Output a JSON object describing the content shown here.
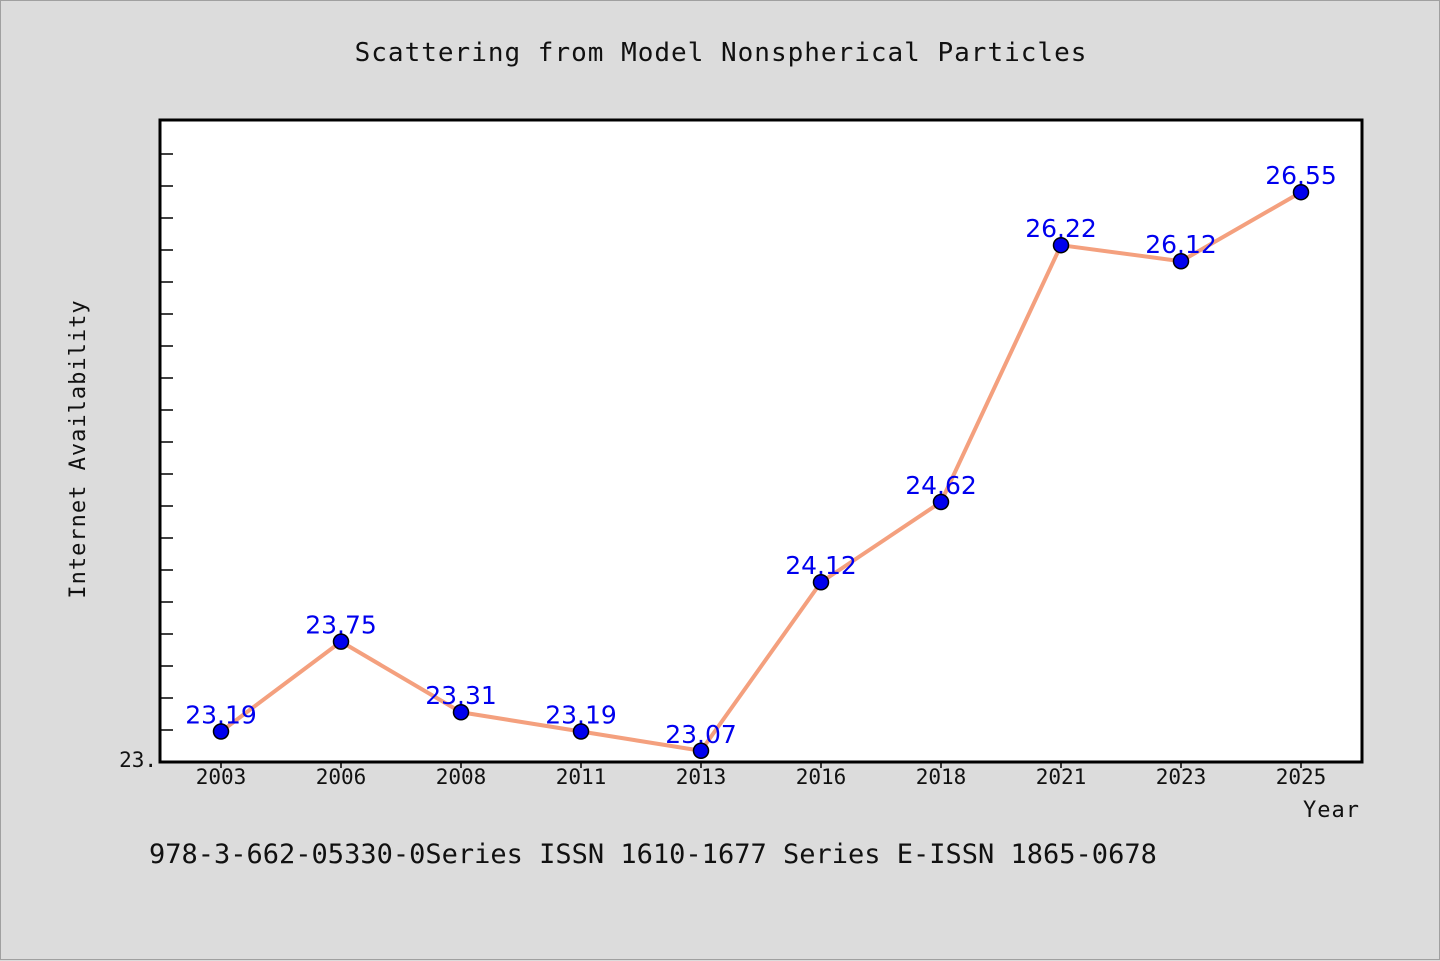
{
  "chart_data": {
    "type": "line",
    "title": "Scattering from Model Nonspherical Particles",
    "xlabel": "Year",
    "ylabel": "Internet Availability",
    "categories": [
      "2003",
      "2006",
      "2008",
      "2011",
      "2013",
      "2016",
      "2018",
      "2021",
      "2023",
      "2025"
    ],
    "values": [
      23.19,
      23.75,
      23.31,
      23.19,
      23.07,
      24.12,
      24.62,
      26.22,
      26.12,
      26.55
    ],
    "data_labels": [
      "23.19",
      "23.75",
      "23.31",
      "23.19",
      "23.07",
      "24.12",
      "24.62",
      "26.22",
      "26.12",
      "26.55"
    ],
    "y_tick_label": "23.",
    "ylim": [
      23.0,
      27.0
    ],
    "grid": false,
    "line_color": "#f4a07e",
    "marker_color": "#0000ee",
    "footer": "978-3-662-05330-0Series ISSN 1610-1677 Series E-ISSN 1865-0678"
  }
}
